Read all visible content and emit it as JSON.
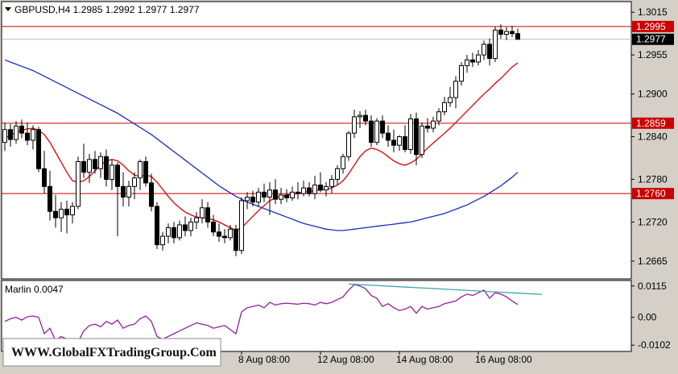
{
  "header": {
    "symbol_line": "GBPUSD,H4  1.2985 1.2992 1.2977 1.2977"
  },
  "indicator": {
    "label": "Marlin 0.0047"
  },
  "watermark": {
    "text": "WWW.GlobalFXTradingGroup.Com"
  },
  "colors": {
    "background": "#d4d0c8",
    "plot": "#ffffff",
    "candle": "#000000",
    "ma_fast": "#e00000",
    "ma_slow": "#1a2bc0",
    "hline": "#cc0000",
    "oscillator": "#9020a0",
    "divergence": "#3aa6a6"
  },
  "chart_data": {
    "type": "candlestick",
    "symbol": "GBPUSD",
    "timeframe": "H4",
    "ylim": [
      1.264,
      1.303
    ],
    "y_ticks": [
      "1.3015",
      "1.2955",
      "1.2900",
      "1.2840",
      "1.2780",
      "1.2720",
      "1.2665"
    ],
    "x_ticks": [
      "8 Aug 08:00",
      "12 Aug 08:00",
      "14 Aug 08:00",
      "16 Aug 08:00"
    ],
    "horizontal_levels": [
      {
        "value": 1.2995,
        "label": "1.2995"
      },
      {
        "value": 1.2859,
        "label": "1.2859"
      },
      {
        "value": 1.276,
        "label": "1.2760"
      }
    ],
    "current_price": {
      "value": 1.2977,
      "label": "1.2977"
    },
    "candles": [
      [
        1.2832,
        1.286,
        1.282,
        1.285
      ],
      [
        1.285,
        1.2858,
        1.2826,
        1.2836
      ],
      [
        1.2836,
        1.2862,
        1.283,
        1.2855
      ],
      [
        1.2855,
        1.2864,
        1.2838,
        1.2845
      ],
      [
        1.2845,
        1.286,
        1.2828,
        1.2835
      ],
      [
        1.2835,
        1.2856,
        1.2822,
        1.285
      ],
      [
        1.285,
        1.2854,
        1.279,
        1.2795
      ],
      [
        1.2795,
        1.282,
        1.276,
        1.277
      ],
      [
        1.277,
        1.2792,
        1.2722,
        1.2735
      ],
      [
        1.2735,
        1.2758,
        1.2712,
        1.2726
      ],
      [
        1.2726,
        1.2748,
        1.2706,
        1.2738
      ],
      [
        1.2738,
        1.275,
        1.2704,
        1.273
      ],
      [
        1.273,
        1.2748,
        1.2718,
        1.2742
      ],
      [
        1.2742,
        1.2812,
        1.2738,
        1.2805
      ],
      [
        1.2805,
        1.283,
        1.2782,
        1.279
      ],
      [
        1.279,
        1.2816,
        1.2775,
        1.2808
      ],
      [
        1.2808,
        1.282,
        1.2788,
        1.2795
      ],
      [
        1.2795,
        1.2818,
        1.2782,
        1.2812
      ],
      [
        1.2812,
        1.2822,
        1.277,
        1.278
      ],
      [
        1.278,
        1.2808,
        1.2765,
        1.28
      ],
      [
        1.28,
        1.2804,
        1.27,
        1.277
      ],
      [
        1.277,
        1.279,
        1.2742,
        1.2755
      ],
      [
        1.2755,
        1.2778,
        1.2742,
        1.277
      ],
      [
        1.277,
        1.279,
        1.2752,
        1.2782
      ],
      [
        1.2782,
        1.2808,
        1.2765,
        1.2805
      ],
      [
        1.2805,
        1.2812,
        1.277,
        1.2775
      ],
      [
        1.2775,
        1.2788,
        1.2735,
        1.2742
      ],
      [
        1.2742,
        1.2748,
        1.2682,
        1.2688
      ],
      [
        1.2688,
        1.2706,
        1.268,
        1.27
      ],
      [
        1.27,
        1.2718,
        1.269,
        1.2712
      ],
      [
        1.2712,
        1.272,
        1.269,
        1.2698
      ],
      [
        1.2698,
        1.2722,
        1.2694,
        1.2716
      ],
      [
        1.2716,
        1.2728,
        1.27,
        1.2708
      ],
      [
        1.2708,
        1.2726,
        1.27,
        1.272
      ],
      [
        1.272,
        1.2734,
        1.271,
        1.2726
      ],
      [
        1.2726,
        1.2752,
        1.2718,
        1.274
      ],
      [
        1.274,
        1.2748,
        1.2712,
        1.272
      ],
      [
        1.272,
        1.273,
        1.27,
        1.2706
      ],
      [
        1.2706,
        1.2718,
        1.2692,
        1.27
      ],
      [
        1.27,
        1.271,
        1.269,
        1.2698
      ],
      [
        1.2698,
        1.2716,
        1.2694,
        1.271
      ],
      [
        1.271,
        1.2716,
        1.2672,
        1.268
      ],
      [
        1.268,
        1.2755,
        1.2675,
        1.275
      ],
      [
        1.275,
        1.2762,
        1.2738,
        1.2755
      ],
      [
        1.2755,
        1.2764,
        1.2742,
        1.2748
      ],
      [
        1.2748,
        1.2768,
        1.2742,
        1.2762
      ],
      [
        1.2762,
        1.2774,
        1.2748,
        1.2755
      ],
      [
        1.2755,
        1.2776,
        1.273,
        1.2765
      ],
      [
        1.2765,
        1.278,
        1.2745,
        1.2752
      ],
      [
        1.2752,
        1.2768,
        1.2745,
        1.2758
      ],
      [
        1.2758,
        1.2766,
        1.2748,
        1.2754
      ],
      [
        1.2754,
        1.277,
        1.275,
        1.2762
      ],
      [
        1.2762,
        1.2776,
        1.2752,
        1.276
      ],
      [
        1.276,
        1.2778,
        1.2756,
        1.2768
      ],
      [
        1.2768,
        1.2776,
        1.2756,
        1.276
      ],
      [
        1.276,
        1.2785,
        1.2752,
        1.2772
      ],
      [
        1.2772,
        1.279,
        1.2762,
        1.2765
      ],
      [
        1.2765,
        1.2776,
        1.2756,
        1.277
      ],
      [
        1.277,
        1.2786,
        1.276,
        1.278
      ],
      [
        1.278,
        1.28,
        1.2772,
        1.2795
      ],
      [
        1.2795,
        1.2816,
        1.2788,
        1.2812
      ],
      [
        1.2812,
        1.2848,
        1.2806,
        1.2845
      ],
      [
        1.2845,
        1.2878,
        1.2838,
        1.2868
      ],
      [
        1.2868,
        1.2876,
        1.2852,
        1.287
      ],
      [
        1.287,
        1.2878,
        1.2856,
        1.2862
      ],
      [
        1.2862,
        1.287,
        1.2826,
        1.2832
      ],
      [
        1.2832,
        1.2866,
        1.2828,
        1.2862
      ],
      [
        1.2862,
        1.287,
        1.2838,
        1.2845
      ],
      [
        1.2845,
        1.2856,
        1.2826,
        1.2835
      ],
      [
        1.2835,
        1.285,
        1.2818,
        1.2828
      ],
      [
        1.2828,
        1.2842,
        1.282,
        1.284
      ],
      [
        1.284,
        1.2856,
        1.2818,
        1.2822
      ],
      [
        1.2822,
        1.2872,
        1.2816,
        1.2865
      ],
      [
        1.2865,
        1.2874,
        1.28,
        1.2815
      ],
      [
        1.2815,
        1.286,
        1.281,
        1.2855
      ],
      [
        1.2855,
        1.2866,
        1.2846,
        1.2852
      ],
      [
        1.2852,
        1.2868,
        1.2846,
        1.2862
      ],
      [
        1.2862,
        1.288,
        1.2856,
        1.2875
      ],
      [
        1.2875,
        1.2896,
        1.287,
        1.2888
      ],
      [
        1.2888,
        1.291,
        1.2882,
        1.2895
      ],
      [
        1.2895,
        1.2925,
        1.288,
        1.2918
      ],
      [
        1.2918,
        1.2945,
        1.2912,
        1.294
      ],
      [
        1.294,
        1.2955,
        1.293,
        1.2948
      ],
      [
        1.2948,
        1.2958,
        1.2938,
        1.2945
      ],
      [
        1.2945,
        1.2962,
        1.294,
        1.2955
      ],
      [
        1.2955,
        1.2975,
        1.2948,
        1.297
      ],
      [
        1.297,
        1.2978,
        1.294,
        1.295
      ],
      [
        1.295,
        1.2995,
        1.2945,
        1.299
      ],
      [
        1.299,
        1.2998,
        1.2978,
        1.2984
      ],
      [
        1.2984,
        1.2994,
        1.2976,
        1.2988
      ],
      [
        1.2988,
        1.2996,
        1.298,
        1.2985
      ],
      [
        1.2985,
        1.2992,
        1.2977,
        1.2977
      ]
    ],
    "ma_fast": [
      1.2838,
      1.2842,
      1.2846,
      1.2849,
      1.2851,
      1.2852,
      1.2849,
      1.2843,
      1.2832,
      1.2818,
      1.2804,
      1.279,
      1.2778,
      1.2776,
      1.2778,
      1.2784,
      1.2792,
      1.28,
      1.2806,
      1.2808,
      1.2806,
      1.28,
      1.2792,
      1.2786,
      1.2784,
      1.2786,
      1.2784,
      1.2776,
      1.2766,
      1.2756,
      1.2747,
      1.274,
      1.2734,
      1.273,
      1.2727,
      1.2726,
      1.2725,
      1.2723,
      1.272,
      1.2716,
      1.2712,
      1.2708,
      1.2712,
      1.272,
      1.2728,
      1.2736,
      1.2743,
      1.275,
      1.2754,
      1.2756,
      1.2758,
      1.2759,
      1.276,
      1.2762,
      1.2763,
      1.2764,
      1.2765,
      1.2766,
      1.2768,
      1.2772,
      1.2778,
      1.2788,
      1.28,
      1.2812,
      1.282,
      1.2824,
      1.2822,
      1.2818,
      1.2812,
      1.2806,
      1.2802,
      1.28,
      1.2803,
      1.2808,
      1.2816,
      1.2824,
      1.2831,
      1.2838,
      1.2845,
      1.2852,
      1.286,
      1.2868,
      1.2876,
      1.2884,
      1.2892,
      1.29,
      1.2907,
      1.2915,
      1.2922,
      1.293,
      1.2938,
      1.2944
    ],
    "ma_slow": [
      1.2948,
      1.2945,
      1.2942,
      1.2939,
      1.2936,
      1.2933,
      1.2929,
      1.2925,
      1.2921,
      1.2917,
      1.2913,
      1.2909,
      1.2905,
      1.2901,
      1.2897,
      1.2893,
      1.2889,
      1.2885,
      1.2881,
      1.2877,
      1.2873,
      1.2868,
      1.2863,
      1.2858,
      1.2853,
      1.2848,
      1.2843,
      1.2837,
      1.2831,
      1.2825,
      1.2819,
      1.2813,
      1.2807,
      1.2801,
      1.2795,
      1.2789,
      1.2783,
      1.2777,
      1.2771,
      1.2766,
      1.2761,
      1.2756,
      1.2752,
      1.2748,
      1.2745,
      1.2742,
      1.2739,
      1.2736,
      1.2733,
      1.273,
      1.2727,
      1.2724,
      1.2721,
      1.2718,
      1.2716,
      1.2714,
      1.2712,
      1.271,
      1.2709,
      1.2708,
      1.2708,
      1.2709,
      1.271,
      1.2711,
      1.2712,
      1.2713,
      1.2714,
      1.2715,
      1.2716,
      1.2717,
      1.2718,
      1.2719,
      1.272,
      1.2722,
      1.2724,
      1.2726,
      1.2728,
      1.273,
      1.2732,
      1.2735,
      1.2738,
      1.2741,
      1.2744,
      1.2748,
      1.2752,
      1.2756,
      1.2761,
      1.2766,
      1.2771,
      1.2777,
      1.2783,
      1.279
    ],
    "oscillator": {
      "name": "Marlin",
      "value": 0.0047,
      "ylim": [
        -0.0125,
        0.0135
      ],
      "y_ticks": [
        "0.0115",
        "0.00",
        "-0.0102"
      ],
      "values": [
        -0.0015,
        -0.0005,
        0.0,
        -0.001,
        0.0002,
        0.0005,
        0.0,
        -0.006,
        -0.004,
        -0.0085,
        -0.007,
        -0.008,
        -0.01,
        -0.009,
        -0.005,
        -0.003,
        -0.0025,
        -0.0035,
        -0.0015,
        -0.0025,
        -0.001,
        -0.004,
        -0.003,
        -0.0025,
        -0.0005,
        0.0005,
        -0.0015,
        -0.007,
        -0.008,
        -0.007,
        -0.006,
        -0.005,
        -0.004,
        -0.003,
        -0.002,
        -0.0025,
        -0.003,
        -0.004,
        -0.0035,
        -0.003,
        -0.0045,
        -0.006,
        0.002,
        0.0035,
        0.004,
        0.0045,
        0.0035,
        0.0055,
        0.0045,
        0.005,
        0.0052,
        0.005,
        0.0048,
        0.0052,
        0.005,
        0.0045,
        0.0055,
        0.005,
        0.0055,
        0.0065,
        0.0075,
        0.01,
        0.012,
        0.0115,
        0.0105,
        0.008,
        0.007,
        0.004,
        0.005,
        0.0035,
        0.0025,
        0.003,
        0.004,
        0.0015,
        0.004,
        0.003,
        0.0035,
        0.004,
        0.005,
        0.0055,
        0.006,
        0.0075,
        0.0085,
        0.008,
        0.009,
        0.01,
        0.007,
        0.009,
        0.0085,
        0.0075,
        0.006,
        0.0047
      ],
      "divergence_line": [
        [
          61,
          0.0122
        ],
        [
          91,
          0.009
        ]
      ]
    }
  }
}
